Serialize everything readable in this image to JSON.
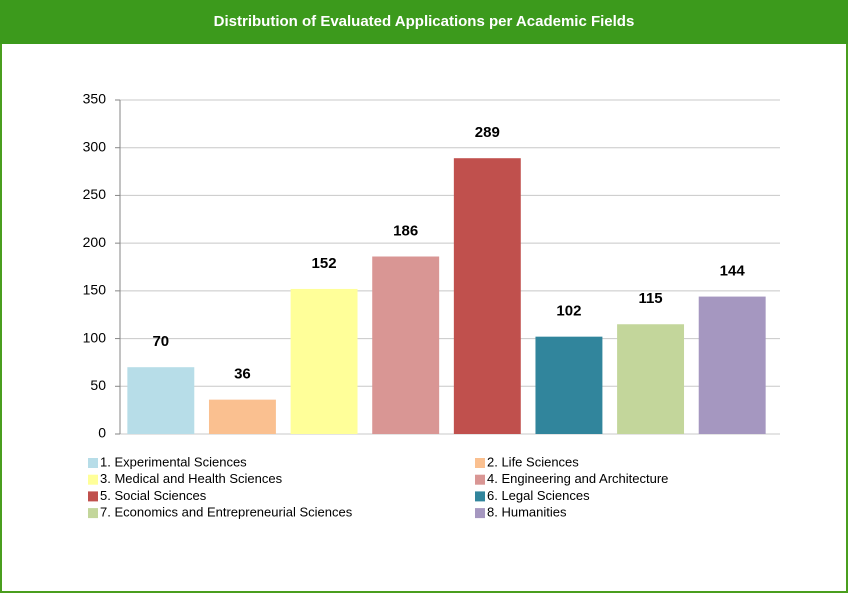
{
  "chart_data": {
    "type": "bar",
    "title": "Distribution of  Evaluated Applications per Academic Fields",
    "categories": [
      "1. Experimental Sciences",
      "2. Life Sciences",
      "3. Medical and Health Sciences",
      "4. Engineering and Architecture",
      "5. Social Sciences",
      "6. Legal Sciences",
      "7. Economics and Entrepreneurial Sciences",
      "8. Humanities"
    ],
    "values": [
      70,
      36,
      152,
      186,
      289,
      102,
      115,
      144
    ],
    "colors": [
      "#b7dde8",
      "#fac090",
      "#ffff99",
      "#d99694",
      "#c0504d",
      "#31859c",
      "#c3d69b",
      "#a597c0"
    ],
    "ylim": [
      0,
      350
    ],
    "yticks": [
      0,
      50,
      100,
      150,
      200,
      250,
      300,
      350
    ],
    "grid": true,
    "legend": "bottom"
  }
}
